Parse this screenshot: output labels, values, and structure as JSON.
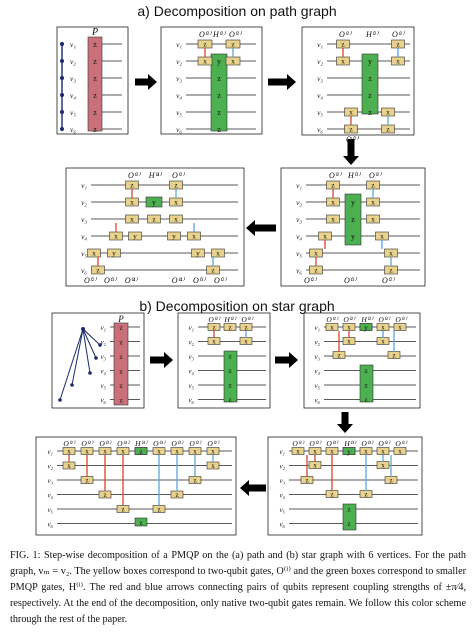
{
  "figure": {
    "section_a_title": "a) Decomposition on path graph",
    "section_b_title": "b) Decomposition on star graph",
    "labels": {
      "P": "P",
      "vertices": [
        "v₁",
        "v₂",
        "v₃",
        "v₄",
        "v₅",
        "v₆"
      ],
      "z": "z",
      "x": "x",
      "y": "y",
      "H1": "H⁽¹⁾",
      "H2": "H⁽²⁾",
      "H3": "H⁽³⁾",
      "H4": "H⁽⁴⁾",
      "O1": "O⁽¹⁾",
      "O2": "O⁽²⁾",
      "O3": "O⁽³⁾",
      "O4": "O⁽⁴⁾"
    },
    "colors": {
      "P_gate": "#c9707a",
      "H_gate": "#4caf50",
      "two_qubit_gate": "#e8d28c",
      "red_arrow": "#d9452b",
      "blue_arrow": "#5aa9d6",
      "flow_arrow": "#000000"
    }
  },
  "caption": {
    "text": "FIG. 1: Step-wise decomposition of a PMQP on the (a) path and (b) star graph with 6 vertices. For the path graph, vₘ = v₂. The yellow boxes correspond to two-qubit gates, O⁽ⁱ⁾ and the green boxes correspond to smaller PMQP gates, H⁽ⁱ⁾. The red and blue arrows connecting pairs of qubits represent coupling strengths of ±π⁄4, respectively. At the end of the decomposition, only native two-qubit gates remain. We follow this color scheme through the rest of the paper."
  }
}
